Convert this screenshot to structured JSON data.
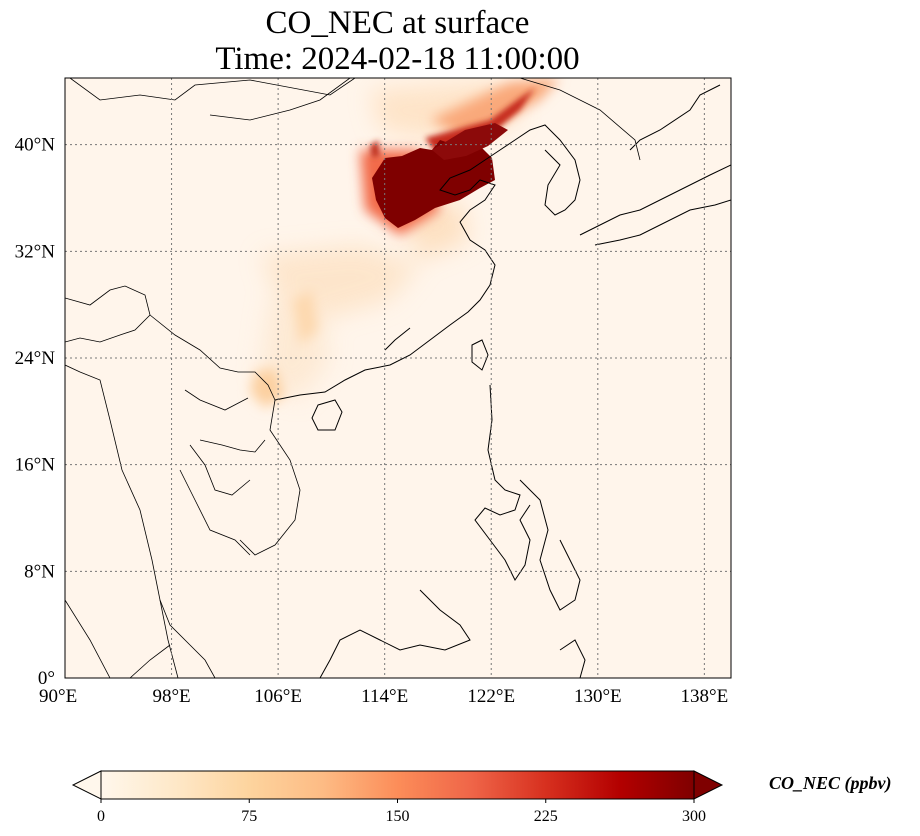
{
  "title": {
    "line1": "CO_NEC at surface",
    "line2": "Time: 2024-02-18 11:00:00"
  },
  "map": {
    "projection": "PlateCarree",
    "lon_range": [
      90,
      140
    ],
    "lat_range": [
      0,
      45
    ],
    "gridlines": true,
    "gridline_style": "dotted",
    "x_ticks": [
      "90°E",
      "98°E",
      "106°E",
      "114°E",
      "122°E",
      "130°E",
      "138°E"
    ],
    "x_tick_values": [
      90,
      98,
      106,
      114,
      122,
      130,
      138
    ],
    "y_ticks": [
      "0°",
      "8°N",
      "16°N",
      "24°N",
      "32°N",
      "40°N"
    ],
    "y_tick_values": [
      0,
      8,
      16,
      24,
      32,
      40
    ],
    "background_color": "#fff5eb",
    "coastline_color": "#000000"
  },
  "colorbar": {
    "label": "CO_NEC (ppbv)",
    "ticks": [
      "0",
      "75",
      "150",
      "225",
      "300"
    ],
    "tick_values": [
      0,
      75,
      150,
      225,
      300
    ],
    "range": [
      0,
      300
    ],
    "extend": "both",
    "colormap": "OrRd",
    "colors": [
      "#fff7ec",
      "#fee8c8",
      "#fdd49e",
      "#fdbb84",
      "#fc8d59",
      "#ef6548",
      "#d7301f",
      "#b30000",
      "#7f0000"
    ]
  }
}
